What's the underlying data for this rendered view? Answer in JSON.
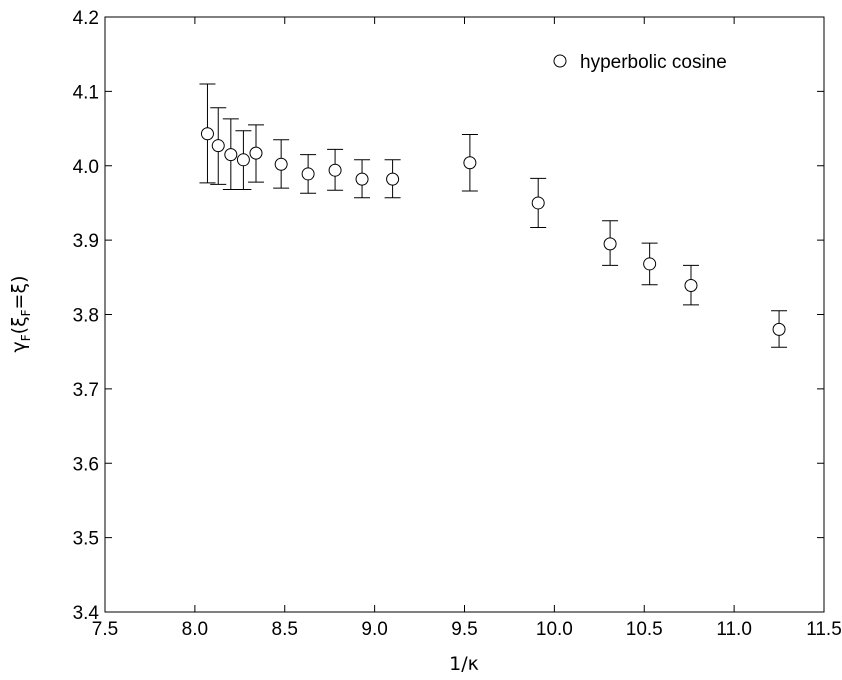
{
  "chart_data": {
    "type": "scatter",
    "xlabel": "1/κ",
    "ylabel_parts": [
      "γ",
      "F",
      "(ξ",
      "F",
      "=ξ)"
    ],
    "xlim": [
      7.5,
      11.5
    ],
    "ylim": [
      3.4,
      4.2
    ],
    "x_ticks": [
      "7.5",
      "8.0",
      "8.5",
      "9.0",
      "9.5",
      "10.0",
      "10.5",
      "11.0",
      "11.5"
    ],
    "y_ticks": [
      "3.4",
      "3.5",
      "3.6",
      "3.7",
      "3.8",
      "3.9",
      "4.0",
      "4.1",
      "4.2"
    ],
    "legend_position": "top-right",
    "grid": false,
    "series": [
      {
        "name": "hyperbolic cosine",
        "marker": "open-circle",
        "points": [
          {
            "x": 8.07,
            "y": 4.043,
            "err_low": 3.977,
            "err_high": 4.11
          },
          {
            "x": 8.13,
            "y": 4.027,
            "err_low": 3.975,
            "err_high": 4.078
          },
          {
            "x": 8.2,
            "y": 4.015,
            "err_low": 3.968,
            "err_high": 4.063
          },
          {
            "x": 8.27,
            "y": 4.008,
            "err_low": 3.968,
            "err_high": 4.047
          },
          {
            "x": 8.34,
            "y": 4.017,
            "err_low": 3.978,
            "err_high": 4.055
          },
          {
            "x": 8.48,
            "y": 4.002,
            "err_low": 3.97,
            "err_high": 4.035
          },
          {
            "x": 8.63,
            "y": 3.989,
            "err_low": 3.963,
            "err_high": 4.015
          },
          {
            "x": 8.78,
            "y": 3.994,
            "err_low": 3.967,
            "err_high": 4.022
          },
          {
            "x": 8.93,
            "y": 3.982,
            "err_low": 3.957,
            "err_high": 4.008
          },
          {
            "x": 9.1,
            "y": 3.982,
            "err_low": 3.957,
            "err_high": 4.008
          },
          {
            "x": 9.53,
            "y": 4.004,
            "err_low": 3.966,
            "err_high": 4.042
          },
          {
            "x": 9.91,
            "y": 3.95,
            "err_low": 3.917,
            "err_high": 3.983
          },
          {
            "x": 10.31,
            "y": 3.895,
            "err_low": 3.866,
            "err_high": 3.926
          },
          {
            "x": 10.53,
            "y": 3.868,
            "err_low": 3.84,
            "err_high": 3.896
          },
          {
            "x": 10.76,
            "y": 3.839,
            "err_low": 3.813,
            "err_high": 3.866
          },
          {
            "x": 11.25,
            "y": 3.78,
            "err_low": 3.756,
            "err_high": 3.805
          }
        ]
      }
    ]
  }
}
